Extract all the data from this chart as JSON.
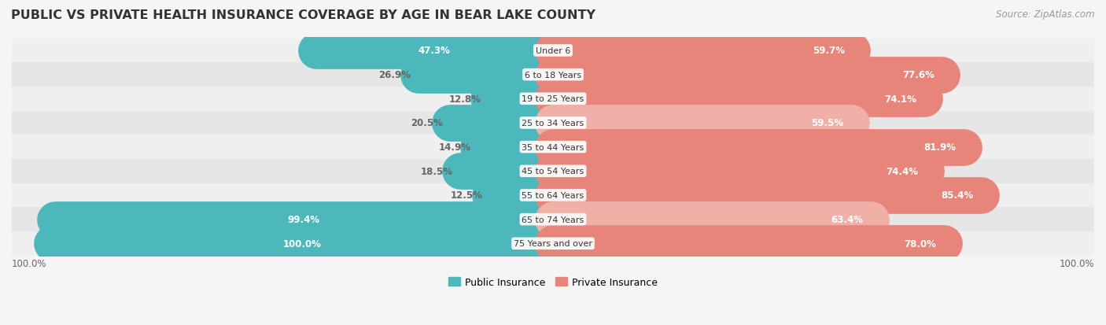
{
  "title": "PUBLIC VS PRIVATE HEALTH INSURANCE COVERAGE BY AGE IN BEAR LAKE COUNTY",
  "source": "Source: ZipAtlas.com",
  "categories": [
    "Under 6",
    "6 to 18 Years",
    "19 to 25 Years",
    "25 to 34 Years",
    "35 to 44 Years",
    "45 to 54 Years",
    "55 to 64 Years",
    "65 to 74 Years",
    "75 Years and over"
  ],
  "public_values": [
    47.3,
    26.9,
    12.8,
    20.5,
    14.9,
    18.5,
    12.5,
    99.4,
    100.0
  ],
  "private_values": [
    59.7,
    77.6,
    74.1,
    59.5,
    81.9,
    74.4,
    85.4,
    63.4,
    78.0
  ],
  "public_color": "#4cb8bc",
  "private_color": "#e8857a",
  "private_color_light": "#f0b0a8",
  "label_color_inside": "#ffffff",
  "label_color_outside": "#666666",
  "max_value": 100.0,
  "legend_public": "Public Insurance",
  "legend_private": "Private Insurance",
  "background_color": "#f5f5f5",
  "row_colors": [
    "#efefef",
    "#e6e6e6"
  ],
  "title_fontsize": 11.5,
  "source_fontsize": 8.5,
  "bar_fontsize": 8.5
}
